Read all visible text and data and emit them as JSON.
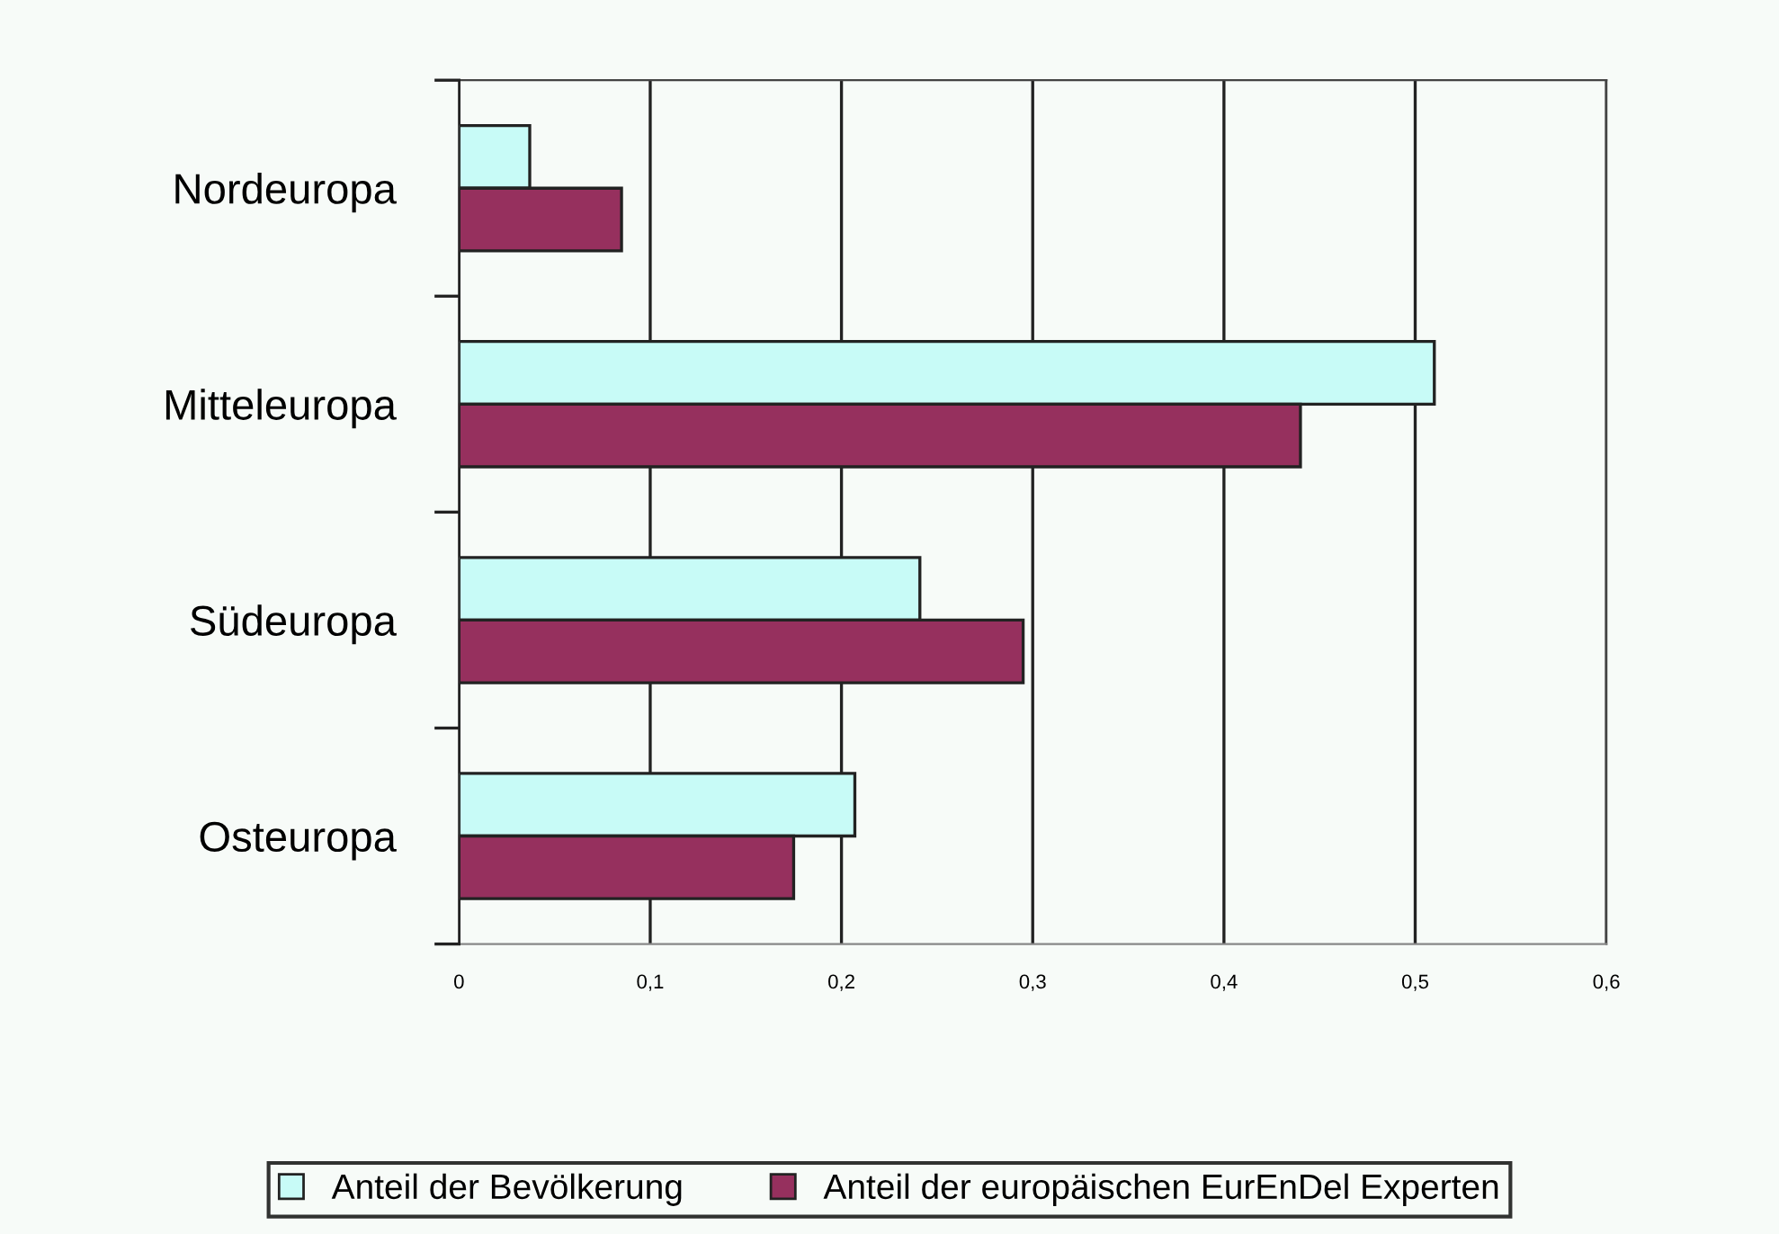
{
  "chart_data": {
    "type": "bar",
    "orientation": "horizontal",
    "categories": [
      "Nordeuropa",
      "Mitteleuropa",
      "Südeuropa",
      "Osteuropa"
    ],
    "series": [
      {
        "name": "Anteil der Bevölkerung",
        "color": "#c8fbf7",
        "values": [
          0.037,
          0.51,
          0.241,
          0.207
        ]
      },
      {
        "name": "Anteil der europäischen EurEnDel Experten",
        "color": "#96305e",
        "values": [
          0.085,
          0.44,
          0.295,
          0.175
        ]
      }
    ],
    "xlim": [
      0,
      0.6
    ],
    "xticks": [
      0,
      {
        "value": 0.1,
        "label": "0,1"
      },
      {
        "value": 0.2,
        "label": "0,2"
      },
      {
        "value": 0.3,
        "label": "0,3"
      },
      {
        "value": 0.4,
        "label": "0,4"
      },
      {
        "value": 0.5,
        "label": "0,5"
      },
      {
        "value": 0.6,
        "label": "0,6"
      }
    ],
    "grid": "x",
    "legend": "bottom"
  }
}
